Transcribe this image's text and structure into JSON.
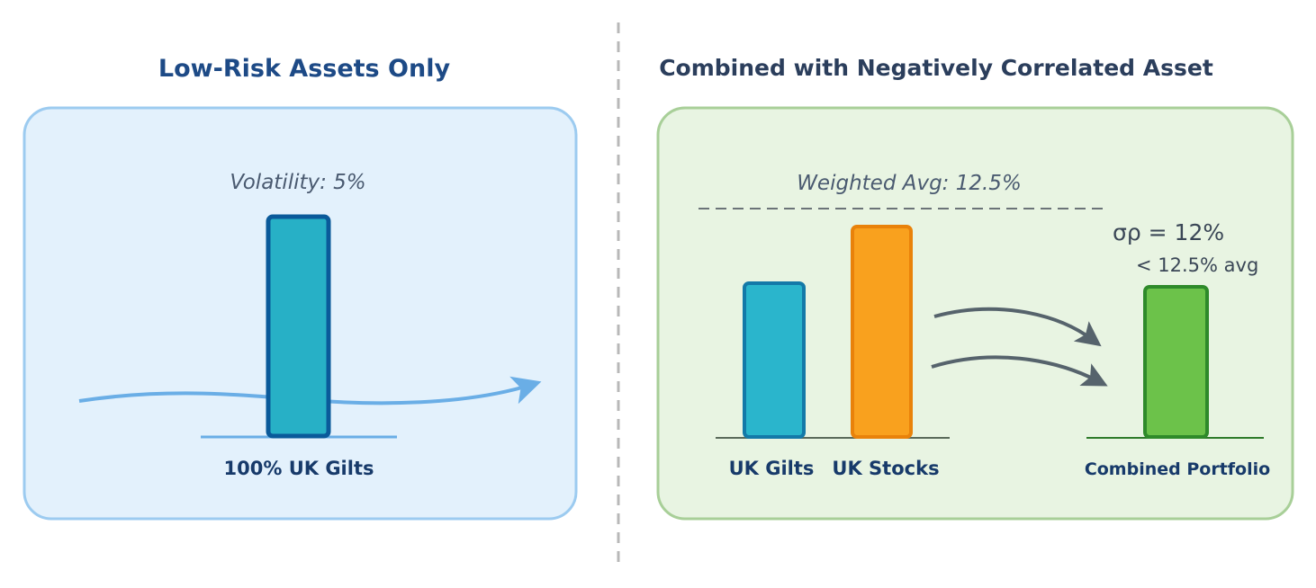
{
  "left_panel": {
    "title": "Low-Risk Assets Only",
    "volatility_label": "Volatility: 5%",
    "bar_label": "100% UK Gilts",
    "volatility_pct": 5
  },
  "right_panel": {
    "title": "Combined with Negatively Correlated Asset",
    "weighted_avg_label": "Weighted Avg: 12.5%",
    "sigma_label": "σρ = 12%",
    "comparison_label": "< 12.5% avg",
    "bars": [
      {
        "label": "UK Gilts",
        "color": "#2ab5cc"
      },
      {
        "label": "UK Stocks",
        "color": "#f9a11e"
      },
      {
        "label": "Combined Portfolio",
        "color": "#6cc24a"
      }
    ]
  },
  "colors": {
    "left_bg": "#e3f1fc",
    "right_bg": "#e8f4e2",
    "title": "#1d4a86"
  }
}
